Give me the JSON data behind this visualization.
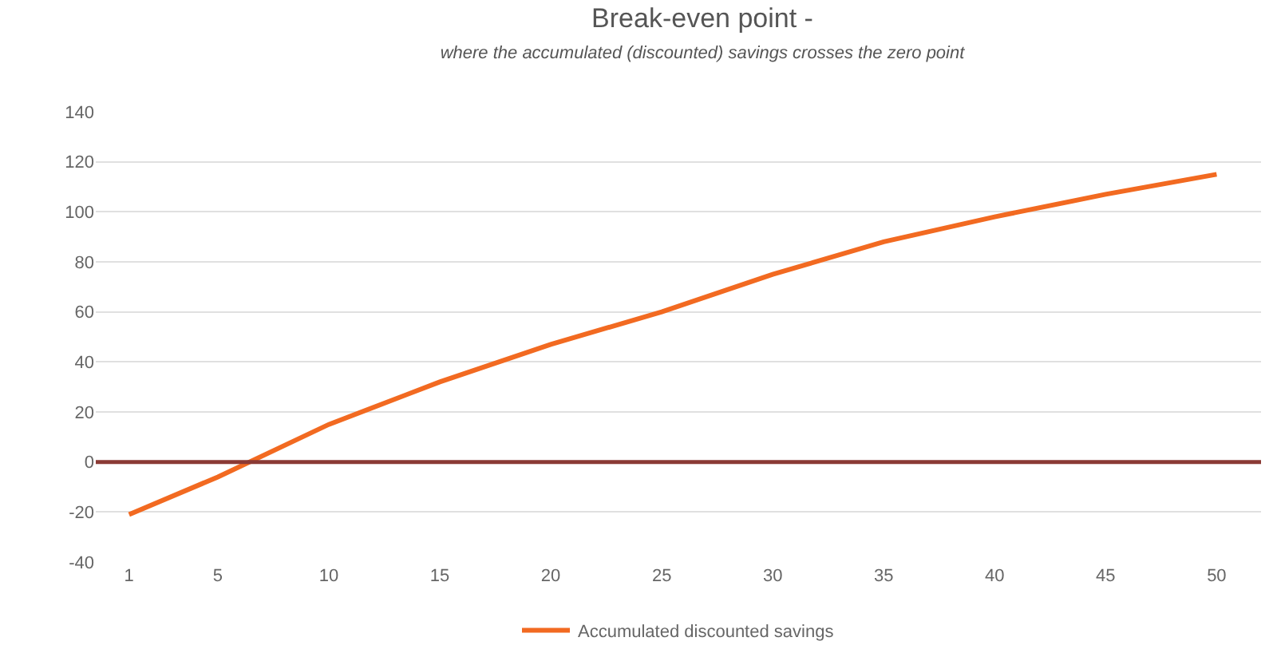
{
  "chart_data": {
    "type": "line",
    "title": "Break-even point -",
    "subtitle": "where the accumulated (discounted) savings crosses the zero point",
    "x": [
      1,
      5,
      10,
      15,
      20,
      25,
      30,
      35,
      40,
      45,
      50
    ],
    "series": [
      {
        "name": "Accumulated discounted savings",
        "color": "#f26a21",
        "values": [
          -21,
          -6,
          15,
          32,
          47,
          60,
          75,
          88,
          98,
          107,
          115
        ]
      }
    ],
    "xlim": [
      -0.5,
      52
    ],
    "xticks": [
      1,
      5,
      10,
      15,
      20,
      25,
      30,
      35,
      40,
      45,
      50
    ],
    "ylim": [
      -40,
      140
    ],
    "yticks": [
      -40,
      -20,
      0,
      20,
      40,
      60,
      80,
      100,
      120,
      140
    ],
    "ref_lines": [
      {
        "axis": "y",
        "value": 0,
        "color": "#8b3a35"
      }
    ],
    "grid": "y",
    "legend": "bottom",
    "marker": "none",
    "line_style": "solid"
  }
}
